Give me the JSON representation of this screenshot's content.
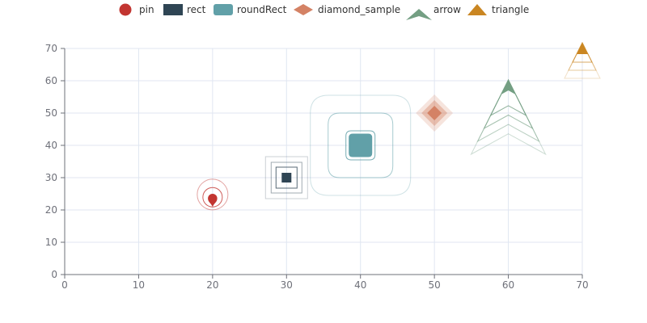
{
  "chart_data": {
    "type": "scatter",
    "title": "",
    "xlabel": "",
    "ylabel": "",
    "xlim": [
      0,
      70
    ],
    "ylim": [
      0,
      70
    ],
    "x_ticks": [
      0,
      10,
      20,
      30,
      40,
      50,
      60,
      70
    ],
    "y_ticks": [
      0,
      10,
      20,
      30,
      40,
      50,
      60,
      70
    ],
    "grid": true,
    "legend_position": "top",
    "series": [
      {
        "name": "pin",
        "symbol": "pin",
        "color": "#c23531",
        "x": 20,
        "y": 23
      },
      {
        "name": "rect",
        "symbol": "rect",
        "color": "#2f4554",
        "x": 30,
        "y": 30
      },
      {
        "name": "roundRect",
        "symbol": "roundRect",
        "color": "#61a0a8",
        "x": 40,
        "y": 40
      },
      {
        "name": "diamond_sample",
        "symbol": "diamond",
        "color": "#d48265",
        "x": 50,
        "y": 50
      },
      {
        "name": "arrow",
        "symbol": "arrow",
        "color": "#749f83",
        "x": 60,
        "y": 58
      },
      {
        "name": "triangle",
        "symbol": "triangle",
        "color": "#ca8622",
        "x": 70,
        "y": 70
      }
    ]
  }
}
